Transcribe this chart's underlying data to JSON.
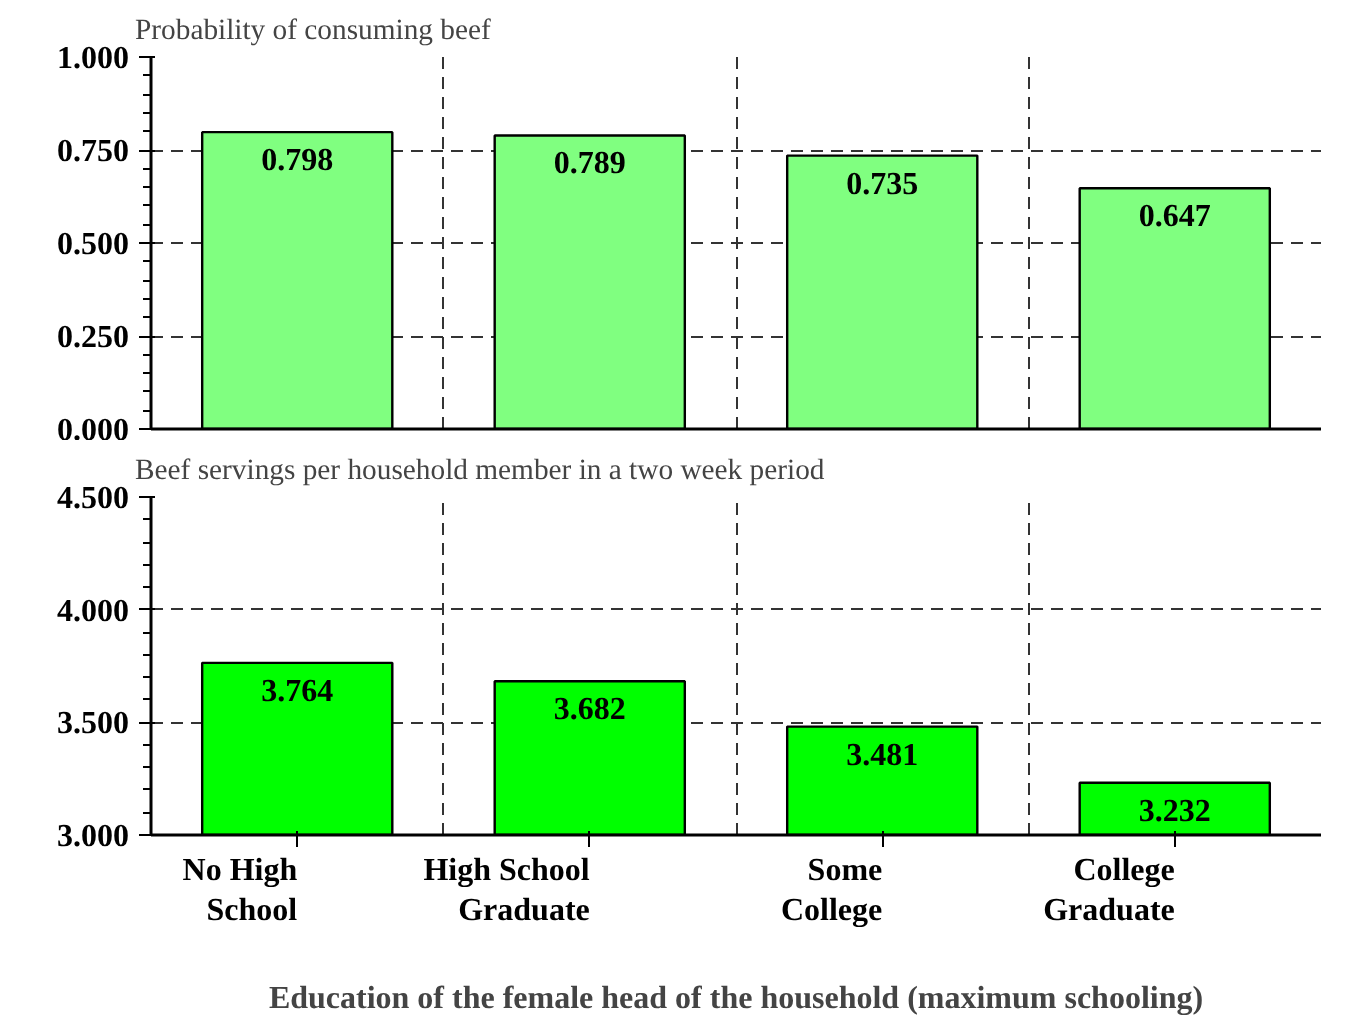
{
  "chart_data": [
    {
      "type": "bar",
      "title": "Probability of consuming beef",
      "categories": [
        null,
        null,
        null,
        null
      ],
      "values": [
        0.798,
        0.789,
        0.735,
        0.647
      ],
      "color": "#80ff80",
      "ylim": [
        0,
        1
      ],
      "yticks": [
        {
          "value": 0,
          "label": "0.000"
        },
        {
          "value": 0.25,
          "label": "0.250"
        },
        {
          "value": 0.5,
          "label": "0.500"
        },
        {
          "value": 0.75,
          "label": "0.750"
        },
        {
          "value": 1,
          "label": "1.000"
        }
      ],
      "grid": true,
      "data_labels": true,
      "tick_labels": "y"
    },
    {
      "type": "bar",
      "title": "Beef servings per household member in a two week period",
      "xlabel": "Education of the female head of the household (maximum schooling)",
      "categories": [
        "No High School",
        "High School Graduate",
        "Some College",
        "College Graduate"
      ],
      "values": [
        3.764,
        3.682,
        3.481,
        3.232
      ],
      "color": "#00ff00",
      "ylim": [
        3,
        4.5
      ],
      "yticks": [
        {
          "value": 3,
          "label": "3.000"
        },
        {
          "value": 3.5,
          "label": "3.500"
        },
        {
          "value": 4,
          "label": "4.000"
        },
        {
          "value": 4.5,
          "label": "4.500"
        }
      ],
      "grid": true,
      "data_labels": true
    }
  ]
}
